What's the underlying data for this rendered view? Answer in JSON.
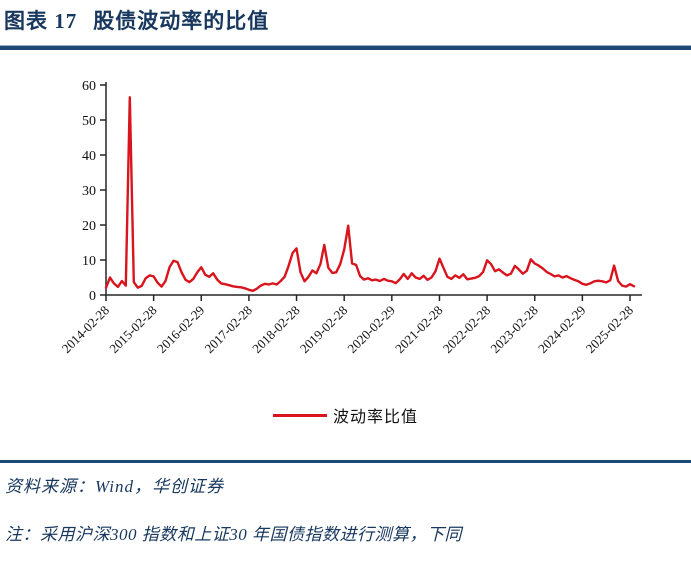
{
  "figure": {
    "label": "图表 17",
    "title": "股债波动率的比值"
  },
  "colors": {
    "navy_text": "#17375e",
    "rule_navy": "#1f4875",
    "line_red": "#d9141c",
    "axis": "#262626"
  },
  "legend": {
    "label": "波动率比值"
  },
  "footer": {
    "source": "资料来源：Wind，华创证券",
    "note": "注：采用沪深300 指数和上证30 年国债指数进行测算，下同"
  },
  "chart_data": {
    "type": "line",
    "title": "股债波动率的比值",
    "xlabel": "",
    "ylabel": "",
    "ylim": [
      0,
      60
    ],
    "y_ticks": [
      0,
      10,
      20,
      30,
      40,
      50,
      60
    ],
    "grid": false,
    "legend_position": "bottom",
    "x_tick_interval_months": 12,
    "x_tick_labels": [
      "2014-02-28",
      "2015-02-28",
      "2016-02-29",
      "2017-02-28",
      "2018-02-28",
      "2019-02-28",
      "2020-02-29",
      "2021-02-28",
      "2022-02-28",
      "2023-02-28",
      "2024-02-29",
      "2025-02-28"
    ],
    "series": [
      {
        "name": "波动率比值",
        "color": "#d9141c",
        "x": [
          "2014-02",
          "2014-03",
          "2014-04",
          "2014-05",
          "2014-06",
          "2014-07",
          "2014-08",
          "2014-09",
          "2014-10",
          "2014-11",
          "2014-12",
          "2015-01",
          "2015-02",
          "2015-03",
          "2015-04",
          "2015-05",
          "2015-06",
          "2015-07",
          "2015-08",
          "2015-09",
          "2015-10",
          "2015-11",
          "2015-12",
          "2016-01",
          "2016-02",
          "2016-03",
          "2016-04",
          "2016-05",
          "2016-06",
          "2016-07",
          "2016-08",
          "2016-09",
          "2016-10",
          "2016-11",
          "2016-12",
          "2017-01",
          "2017-02",
          "2017-03",
          "2017-04",
          "2017-05",
          "2017-06",
          "2017-07",
          "2017-08",
          "2017-09",
          "2017-10",
          "2017-11",
          "2017-12",
          "2018-01",
          "2018-02",
          "2018-03",
          "2018-04",
          "2018-05",
          "2018-06",
          "2018-07",
          "2018-08",
          "2018-09",
          "2018-10",
          "2018-11",
          "2018-12",
          "2019-01",
          "2019-02",
          "2019-03",
          "2019-04",
          "2019-05",
          "2019-06",
          "2019-07",
          "2019-08",
          "2019-09",
          "2019-10",
          "2019-11",
          "2019-12",
          "2020-01",
          "2020-02",
          "2020-03",
          "2020-04",
          "2020-05",
          "2020-06",
          "2020-07",
          "2020-08",
          "2020-09",
          "2020-10",
          "2020-11",
          "2020-12",
          "2021-01",
          "2021-02",
          "2021-03",
          "2021-04",
          "2021-05",
          "2021-06",
          "2021-07",
          "2021-08",
          "2021-09",
          "2021-10",
          "2021-11",
          "2021-12",
          "2022-01",
          "2022-02",
          "2022-03",
          "2022-04",
          "2022-05",
          "2022-06",
          "2022-07",
          "2022-08",
          "2022-09",
          "2022-10",
          "2022-11",
          "2022-12",
          "2023-01",
          "2023-02",
          "2023-03",
          "2023-04",
          "2023-05",
          "2023-06",
          "2023-07",
          "2023-08",
          "2023-09",
          "2023-10",
          "2023-11",
          "2023-12",
          "2024-01",
          "2024-02",
          "2024-03",
          "2024-04",
          "2024-05",
          "2024-06",
          "2024-07",
          "2024-08",
          "2024-09",
          "2024-10",
          "2024-11",
          "2024-12",
          "2025-01",
          "2025-02",
          "2025-03"
        ],
        "values": [
          2.1,
          5.0,
          3.3,
          2.3,
          4.0,
          2.7,
          56.5,
          3.7,
          2.1,
          2.6,
          4.8,
          5.6,
          5.3,
          3.5,
          2.4,
          4.0,
          7.9,
          9.8,
          9.4,
          6.6,
          4.4,
          3.7,
          4.6,
          6.5,
          7.9,
          5.8,
          5.2,
          6.2,
          4.4,
          3.3,
          3.1,
          2.8,
          2.5,
          2.3,
          2.2,
          1.9,
          1.5,
          1.2,
          1.8,
          2.7,
          3.2,
          3.0,
          3.3,
          3.0,
          4.0,
          5.2,
          8.3,
          12.0,
          13.3,
          6.5,
          3.9,
          5.2,
          7.0,
          6.2,
          8.8,
          14.3,
          7.8,
          6.3,
          6.5,
          8.8,
          13.0,
          19.8,
          9.0,
          8.6,
          5.4,
          4.4,
          4.8,
          4.2,
          4.4,
          4.0,
          4.6,
          4.1,
          3.9,
          3.4,
          4.5,
          6.0,
          4.6,
          6.2,
          5.0,
          4.6,
          5.5,
          4.3,
          5.0,
          6.8,
          10.4,
          7.8,
          5.2,
          4.6,
          5.6,
          4.9,
          5.9,
          4.5,
          4.7,
          4.9,
          5.4,
          6.6,
          9.9,
          8.8,
          6.8,
          7.3,
          6.4,
          5.6,
          6.1,
          8.3,
          7.3,
          6.1,
          6.9,
          10.2,
          9.0,
          8.4,
          7.6,
          6.6,
          6.0,
          5.3,
          5.6,
          5.0,
          5.4,
          4.8,
          4.3,
          3.9,
          3.2,
          2.9,
          3.3,
          3.9,
          4.1,
          3.9,
          3.6,
          4.2,
          8.4,
          4.0,
          2.7,
          2.4,
          3.1,
          2.5
        ]
      }
    ]
  }
}
